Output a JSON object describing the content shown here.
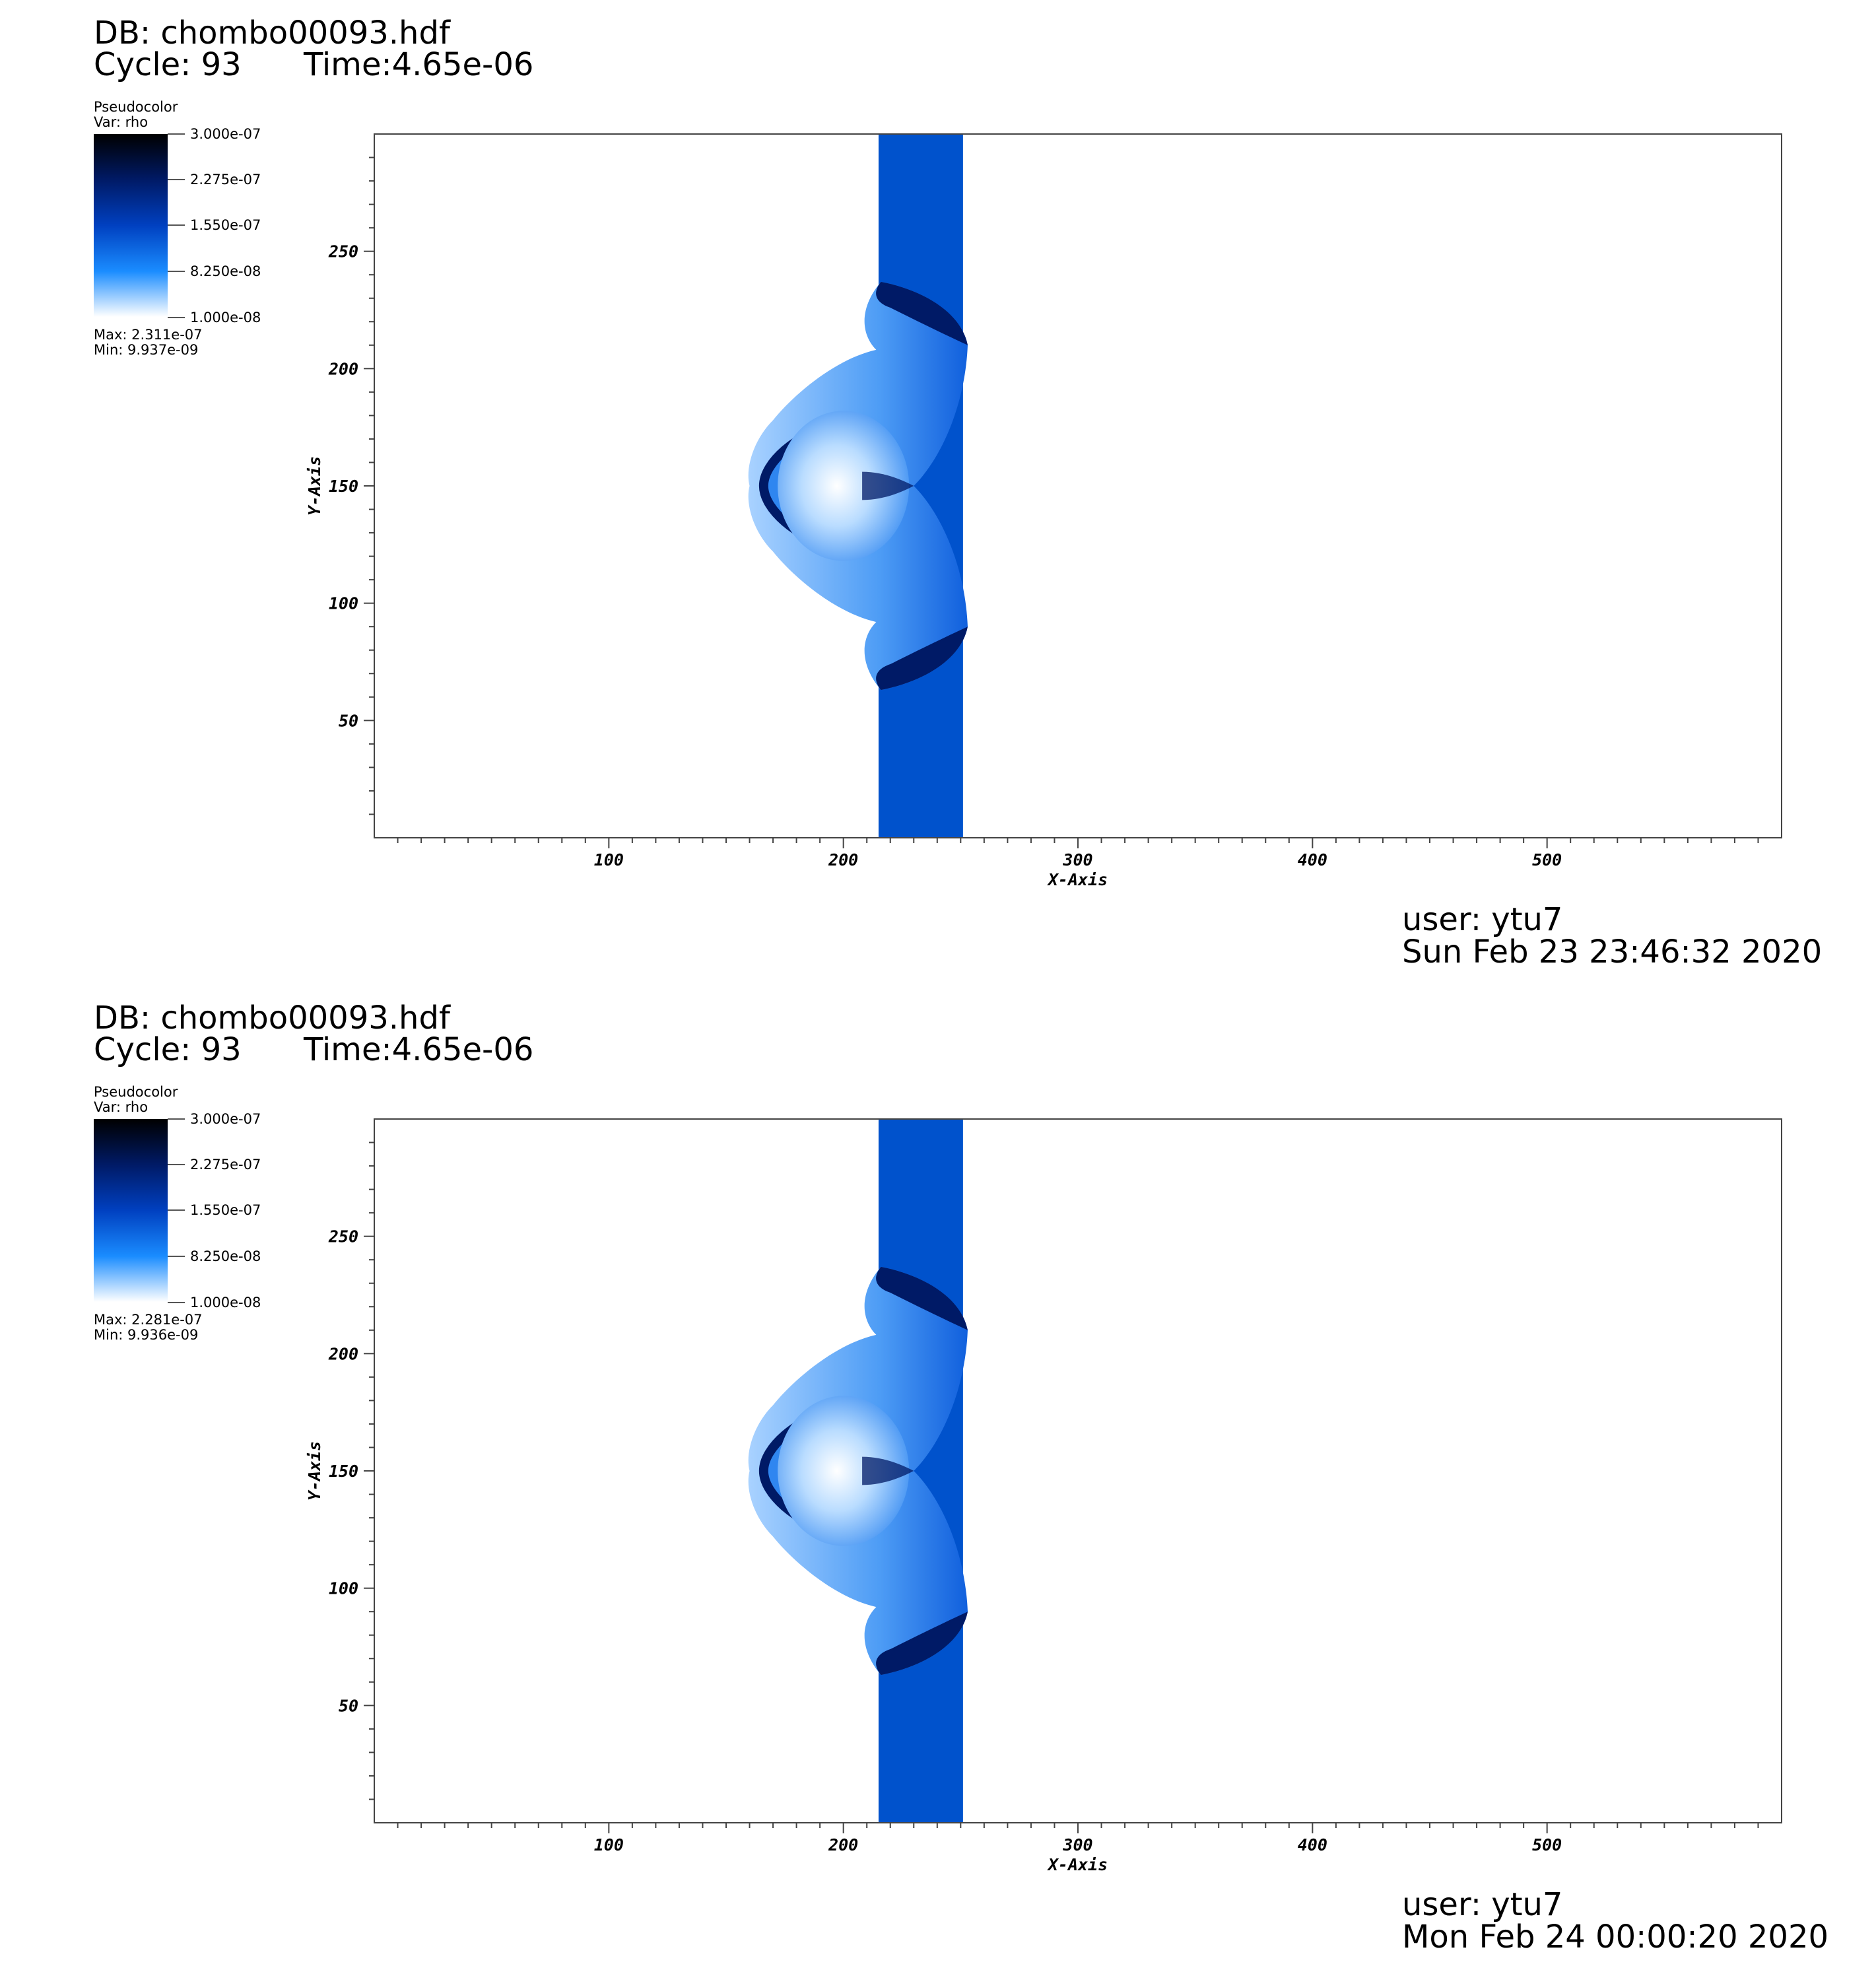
{
  "panels": [
    {
      "db": "DB: chombo00093.hdf",
      "cycle": "Cycle: 93",
      "time": "Time:4.65e-06",
      "legend": {
        "plot_type": "Pseudocolor",
        "variable": "Var: rho",
        "tick_labels": [
          "3.000e-07",
          "2.275e-07",
          "1.550e-07",
          "8.250e-08",
          "1.000e-08"
        ],
        "max": "Max:  2.311e-07",
        "min": "Min:  9.937e-09"
      },
      "footer": {
        "user": "user: ytu7",
        "date": "Sun Feb 23 23:46:32 2020"
      }
    },
    {
      "db": "DB: chombo00093.hdf",
      "cycle": "Cycle: 93",
      "time": "Time:4.65e-06",
      "legend": {
        "plot_type": "Pseudocolor",
        "variable": "Var: rho",
        "tick_labels": [
          "3.000e-07",
          "2.275e-07",
          "1.550e-07",
          "8.250e-08",
          "1.000e-08"
        ],
        "max": "Max:  2.281e-07",
        "min": "Min:  9.936e-09"
      },
      "footer": {
        "user": "user: ytu7",
        "date": "Mon Feb 24 00:00:20 2020"
      }
    }
  ],
  "chart_data": [
    {
      "type": "heatmap",
      "variable": "rho",
      "xlabel": "X-Axis",
      "ylabel": "Y-Axis",
      "xlim": [
        0,
        600
      ],
      "ylim": [
        0,
        300
      ],
      "x_ticks": [
        100,
        200,
        300,
        400,
        500
      ],
      "y_ticks": [
        50,
        100,
        150,
        200,
        250
      ],
      "colorbar_range": [
        1e-08,
        3e-07
      ],
      "colors": {
        "slab": "#0052cc",
        "light": "#8cc4ff",
        "mid": "#2f86f0",
        "dark": "#001a66"
      }
    },
    {
      "type": "heatmap",
      "variable": "rho",
      "xlabel": "X-Axis",
      "ylabel": "Y-Axis",
      "xlim": [
        0,
        600
      ],
      "ylim": [
        0,
        300
      ],
      "x_ticks": [
        100,
        200,
        300,
        400,
        500
      ],
      "y_ticks": [
        50,
        100,
        150,
        200,
        250
      ],
      "colorbar_range": [
        1e-08,
        3e-07
      ],
      "colors": {
        "slab": "#0052cc",
        "light": "#8cc4ff",
        "mid": "#2f86f0",
        "dark": "#001a66"
      }
    }
  ]
}
